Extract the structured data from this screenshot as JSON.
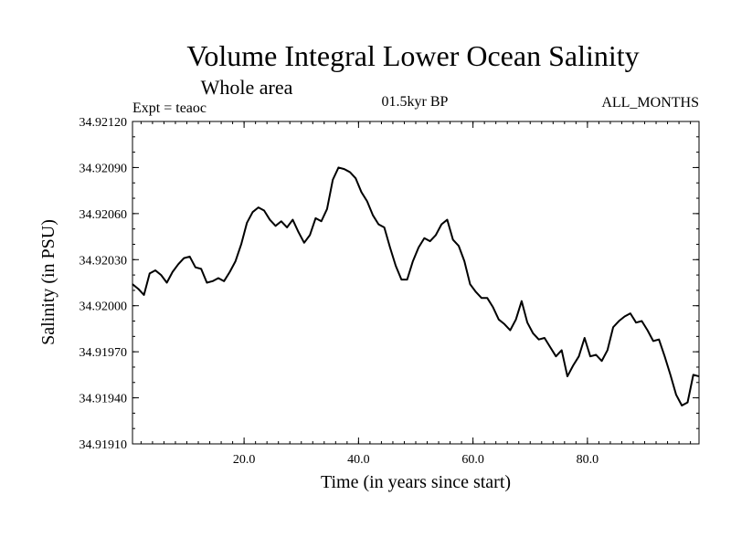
{
  "chart_data": {
    "type": "line",
    "title": "Volume Integral Lower Ocean Salinity",
    "subtitle": "Whole area",
    "experiment_label": "Expt = teaoc",
    "period_label": "01.5kyr BP",
    "months_label": "ALL_MONTHS",
    "xlabel": "Time (in years since start)",
    "ylabel": "Salinity (in PSU)",
    "xlim": [
      0.5,
      99.5
    ],
    "ylim": [
      34.9191,
      34.9212
    ],
    "xticks": [
      20,
      40,
      60,
      80
    ],
    "xtick_labels": [
      "20.0",
      "40.0",
      "60.0",
      "80.0"
    ],
    "yticks": [
      34.9191,
      34.9194,
      34.9197,
      34.92,
      34.9203,
      34.9206,
      34.9209,
      34.9212
    ],
    "ytick_labels": [
      "34.91910",
      "34.91940",
      "34.91970",
      "34.92000",
      "34.92030",
      "34.92060",
      "34.92090",
      "34.92120"
    ],
    "series": [
      {
        "name": "Salinity",
        "x": [
          0.5,
          1.5,
          2.5,
          3.5,
          4.5,
          5.5,
          6.5,
          7.5,
          8.5,
          9.5,
          10.5,
          11.5,
          12.5,
          13.5,
          14.5,
          15.5,
          16.5,
          17.5,
          18.5,
          19.5,
          20.5,
          21.5,
          22.5,
          23.5,
          24.5,
          25.5,
          26.5,
          27.5,
          28.5,
          29.5,
          30.5,
          31.5,
          32.5,
          33.5,
          34.5,
          35.5,
          36.5,
          37.5,
          38.5,
          39.5,
          40.5,
          41.5,
          42.5,
          43.5,
          44.5,
          45.5,
          46.5,
          47.5,
          48.5,
          49.5,
          50.5,
          51.5,
          52.5,
          53.5,
          54.5,
          55.5,
          56.5,
          57.5,
          58.5,
          59.5,
          60.5,
          61.5,
          62.5,
          63.5,
          64.5,
          65.5,
          66.5,
          67.5,
          68.5,
          69.5,
          70.5,
          71.5,
          72.5,
          73.5,
          74.5,
          75.5,
          76.5,
          77.5,
          78.5,
          79.5,
          80.5,
          81.5,
          82.5,
          83.5,
          84.5,
          85.5,
          86.5,
          87.5,
          88.5,
          89.5,
          90.5,
          91.5,
          92.5,
          93.5,
          94.5,
          95.5,
          96.5,
          97.5,
          98.5,
          99.5
        ],
        "values": [
          34.92014,
          34.92011,
          34.92007,
          34.92021,
          34.92023,
          34.9202,
          34.92015,
          34.92022,
          34.92027,
          34.92031,
          34.92032,
          34.92025,
          34.92024,
          34.92015,
          34.92016,
          34.92018,
          34.92016,
          34.92022,
          34.92029,
          34.9204,
          34.92054,
          34.92061,
          34.92064,
          34.92062,
          34.92056,
          34.92052,
          34.92055,
          34.92051,
          34.92056,
          34.92048,
          34.92041,
          34.92046,
          34.92057,
          34.92055,
          34.92063,
          34.92082,
          34.9209,
          34.92089,
          34.92087,
          34.92083,
          34.92074,
          34.92068,
          34.92059,
          34.92053,
          34.92051,
          34.92038,
          34.92026,
          34.92017,
          34.92017,
          34.92029,
          34.92038,
          34.92044,
          34.92042,
          34.92046,
          34.92053,
          34.92056,
          34.92043,
          34.92039,
          34.92029,
          34.92014,
          34.92009,
          34.92005,
          34.92005,
          34.91999,
          34.91991,
          34.91988,
          34.91984,
          34.91991,
          34.92003,
          34.91989,
          34.91982,
          34.91978,
          34.91979,
          34.91973,
          34.91967,
          34.91971,
          34.91954,
          34.91961,
          34.91967,
          34.91979,
          34.91967,
          34.91968,
          34.91964,
          34.91971,
          34.91986,
          34.9199,
          34.91993,
          34.91995,
          34.91989,
          34.9199,
          34.91984,
          34.91977,
          34.91978,
          34.91967,
          34.91955,
          34.91942,
          34.91935,
          34.91937,
          34.91955,
          34.91954
        ]
      }
    ]
  }
}
